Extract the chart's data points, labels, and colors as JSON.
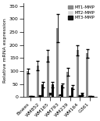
{
  "categories": [
    "Bowes",
    "WM852",
    "WM165",
    "WM793",
    "WM239",
    "WM164",
    "G361"
  ],
  "mt1_mmp": [
    100,
    120,
    158,
    265,
    97,
    180,
    168
  ],
  "mt2_mmp": [
    4,
    5,
    12,
    8,
    4,
    6,
    4
  ],
  "mt3_mmp": [
    2,
    48,
    48,
    45,
    38,
    12,
    3
  ],
  "mt1_err": [
    10,
    18,
    22,
    55,
    14,
    20,
    16
  ],
  "mt2_err": [
    1,
    2,
    3,
    2,
    1,
    2,
    1
  ],
  "mt3_err": [
    1,
    10,
    10,
    8,
    8,
    4,
    1
  ],
  "mt1_color": "#888888",
  "mt2_color": "#d8d8d8",
  "mt3_color": "#111111",
  "ylabel": "Relative mRNA expression",
  "ylim": [
    0,
    360
  ],
  "yticks": [
    0,
    50,
    100,
    150,
    200,
    250,
    300,
    350
  ],
  "legend_labels": [
    "MT1-MMP",
    "MT2-MMP",
    "MT3-MMP"
  ],
  "bar_width": 0.24,
  "figsize": [
    1.28,
    1.55
  ],
  "dpi": 100
}
